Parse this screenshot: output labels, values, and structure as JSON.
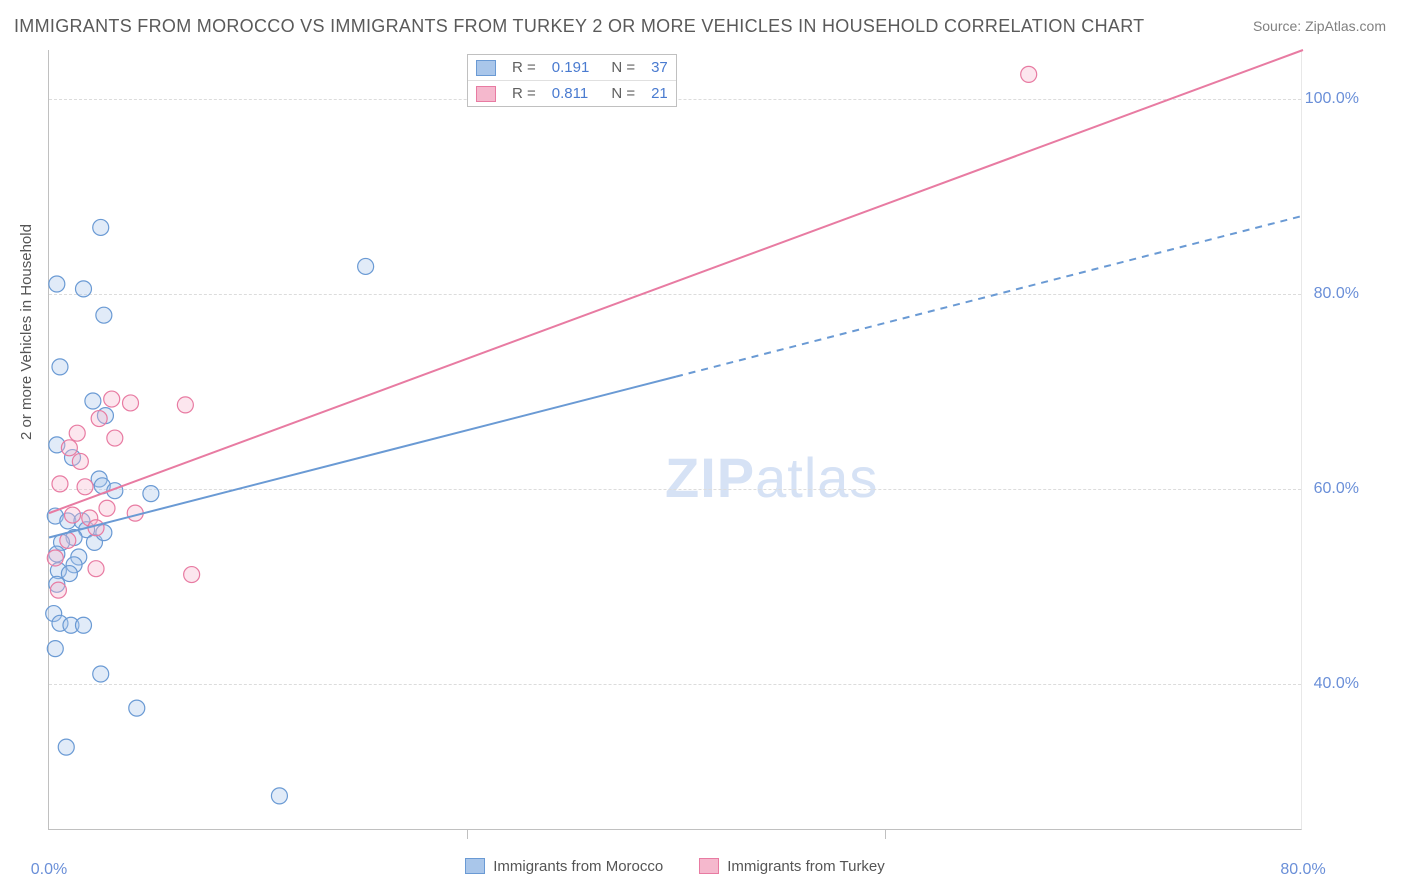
{
  "title": "IMMIGRANTS FROM MOROCCO VS IMMIGRANTS FROM TURKEY 2 OR MORE VEHICLES IN HOUSEHOLD CORRELATION CHART",
  "source": "Source: ZipAtlas.com",
  "y_axis_label": "2 or more Vehicles in Household",
  "watermark_a": "ZIP",
  "watermark_b": "atlas",
  "chart": {
    "type": "scatter",
    "x_range": [
      0,
      80
    ],
    "y_range": [
      25,
      105
    ],
    "x_ticks": [
      0,
      80
    ],
    "x_tick_labels": [
      "0.0%",
      "80.0%"
    ],
    "x_minor_ticks": [
      26.67,
      53.33
    ],
    "y_ticks": [
      40,
      60,
      80,
      100
    ],
    "y_tick_labels": [
      "40.0%",
      "60.0%",
      "80.0%",
      "100.0%"
    ],
    "plot_bg": "#ffffff",
    "grid_color": "#dcdcdc",
    "marker_radius": 8,
    "series": [
      {
        "name": "Immigrants from Morocco",
        "stroke": "#6a9ad4",
        "fill": "#a9c6ea",
        "R": "0.191",
        "N": "37",
        "points": [
          [
            0.5,
            81
          ],
          [
            2.2,
            80.5
          ],
          [
            3.5,
            77.8
          ],
          [
            3.3,
            86.8
          ],
          [
            20.2,
            82.8
          ],
          [
            0.7,
            72.5
          ],
          [
            2.8,
            69
          ],
          [
            3.6,
            67.5
          ],
          [
            0.5,
            64.5
          ],
          [
            1.5,
            63.2
          ],
          [
            3.2,
            61
          ],
          [
            3.4,
            60.3
          ],
          [
            4.2,
            59.8
          ],
          [
            6.5,
            59.5
          ],
          [
            0.4,
            57.2
          ],
          [
            1.2,
            56.7
          ],
          [
            2.1,
            56.7
          ],
          [
            2.4,
            55.8
          ],
          [
            1.6,
            55
          ],
          [
            0.8,
            54.5
          ],
          [
            2.9,
            54.5
          ],
          [
            0.5,
            53.3
          ],
          [
            1.9,
            53
          ],
          [
            1.6,
            52.2
          ],
          [
            0.6,
            51.6
          ],
          [
            1.3,
            51.3
          ],
          [
            0.5,
            50.2
          ],
          [
            3.5,
            55.5
          ],
          [
            0.3,
            47.2
          ],
          [
            0.7,
            46.2
          ],
          [
            1.4,
            46
          ],
          [
            2.2,
            46
          ],
          [
            0.4,
            43.6
          ],
          [
            3.3,
            41
          ],
          [
            5.6,
            37.5
          ],
          [
            1.1,
            33.5
          ],
          [
            14.7,
            28.5
          ]
        ],
        "trend_solid": [
          [
            0,
            55
          ],
          [
            40,
            71.5
          ]
        ],
        "trend_dashed": [
          [
            40,
            71.5
          ],
          [
            80,
            88
          ]
        ]
      },
      {
        "name": "Immigrants from Turkey",
        "stroke": "#e87ba2",
        "fill": "#f5b8cd",
        "R": "0.811",
        "N": "21",
        "points": [
          [
            4.0,
            69.2
          ],
          [
            5.2,
            68.8
          ],
          [
            8.7,
            68.6
          ],
          [
            3.2,
            67.2
          ],
          [
            1.8,
            65.7
          ],
          [
            4.2,
            65.2
          ],
          [
            1.3,
            64.2
          ],
          [
            2.0,
            62.8
          ],
          [
            0.7,
            60.5
          ],
          [
            3.7,
            58
          ],
          [
            5.5,
            57.5
          ],
          [
            1.5,
            57.3
          ],
          [
            2.6,
            57
          ],
          [
            3.0,
            56
          ],
          [
            1.2,
            54.7
          ],
          [
            0.4,
            52.9
          ],
          [
            3.0,
            51.8
          ],
          [
            9.1,
            51.2
          ],
          [
            0.6,
            49.6
          ],
          [
            62.5,
            102.5
          ],
          [
            2.3,
            60.2
          ]
        ],
        "trend_solid": [
          [
            0,
            57.5
          ],
          [
            80,
            105
          ]
        ],
        "trend_dashed": null
      }
    ]
  },
  "legend_top": {
    "rows": [
      {
        "swatch_fill": "#a9c6ea",
        "swatch_stroke": "#6a9ad4",
        "R_label": "R =",
        "R_val": "0.191",
        "N_label": "N =",
        "N_val": "37"
      },
      {
        "swatch_fill": "#f5b8cd",
        "swatch_stroke": "#e87ba2",
        "R_label": "R =",
        "R_val": "0.811",
        "N_label": "N =",
        "N_val": "21"
      }
    ]
  },
  "legend_bottom": {
    "items": [
      {
        "swatch_fill": "#a9c6ea",
        "swatch_stroke": "#6a9ad4",
        "label": "Immigrants from Morocco"
      },
      {
        "swatch_fill": "#f5b8cd",
        "swatch_stroke": "#e87ba2",
        "label": "Immigrants from Turkey"
      }
    ]
  }
}
